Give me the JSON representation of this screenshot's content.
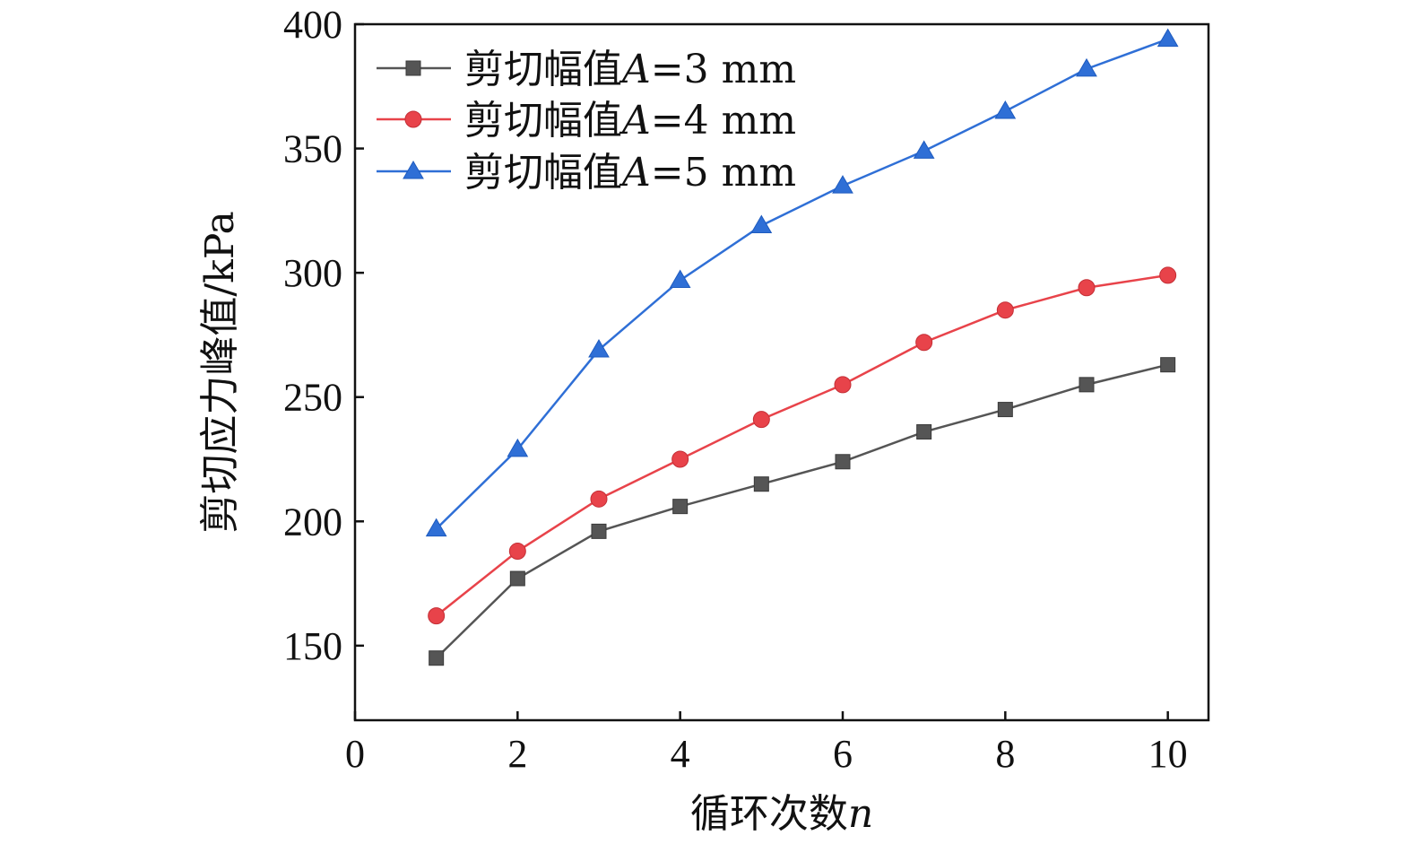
{
  "chart_data": {
    "type": "line",
    "title": "",
    "xlabel": "循环次数",
    "xlabel_var": "n",
    "ylabel": "剪切应力峰值/kPa",
    "xlim": [
      0,
      10.5
    ],
    "ylim": [
      120,
      400
    ],
    "xticks": [
      0,
      2,
      4,
      6,
      8,
      10
    ],
    "yticks": [
      150,
      200,
      250,
      300,
      350,
      400
    ],
    "grid": false,
    "legend_position": "top-left",
    "x": [
      1,
      2,
      3,
      4,
      5,
      6,
      7,
      8,
      9,
      10
    ],
    "series": [
      {
        "name": "剪切幅值A=3 mm",
        "legend_prefix": "剪切幅值",
        "legend_var": "A",
        "legend_suffix": "=3 mm",
        "marker": "square",
        "color": "#555555",
        "values": [
          145,
          177,
          196,
          206,
          215,
          224,
          236,
          245,
          255,
          263
        ]
      },
      {
        "name": "剪切幅值A=4 mm",
        "legend_prefix": "剪切幅值",
        "legend_var": "A",
        "legend_suffix": "=4 mm",
        "marker": "circle",
        "color": "#e8434a",
        "values": [
          162,
          188,
          209,
          225,
          241,
          255,
          272,
          285,
          294,
          299
        ]
      },
      {
        "name": "剪切幅值A=5 mm",
        "legend_prefix": "剪切幅值",
        "legend_var": "A",
        "legend_suffix": "=5 mm",
        "marker": "triangle",
        "color": "#2f6fd6",
        "values": [
          197,
          229,
          269,
          297,
          319,
          335,
          349,
          365,
          382,
          394
        ]
      }
    ]
  }
}
